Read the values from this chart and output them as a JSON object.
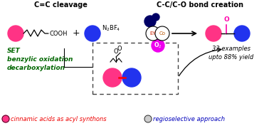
{
  "bg_color": "#ffffff",
  "title_left": "C=C cleavage",
  "title_right": "C-C/C-O bond creation",
  "pink_color": "#FF3385",
  "blue_color": "#2233EE",
  "magenta_color": "#EE00EE",
  "dark_blue_color": "#000066",
  "green_color": "#006600",
  "red_text_color": "#EE0000",
  "blue_text_color": "#0000BB",
  "set_text": "SET\nbenzylic oxidation\ndecarboxylation",
  "label_left": "cinnamic acids as acyl synthons",
  "label_right": "regioselective approach",
  "examples_text": "32 examples\nupto 88% yield",
  "pink_ketone_O_color": "#FF00AA"
}
